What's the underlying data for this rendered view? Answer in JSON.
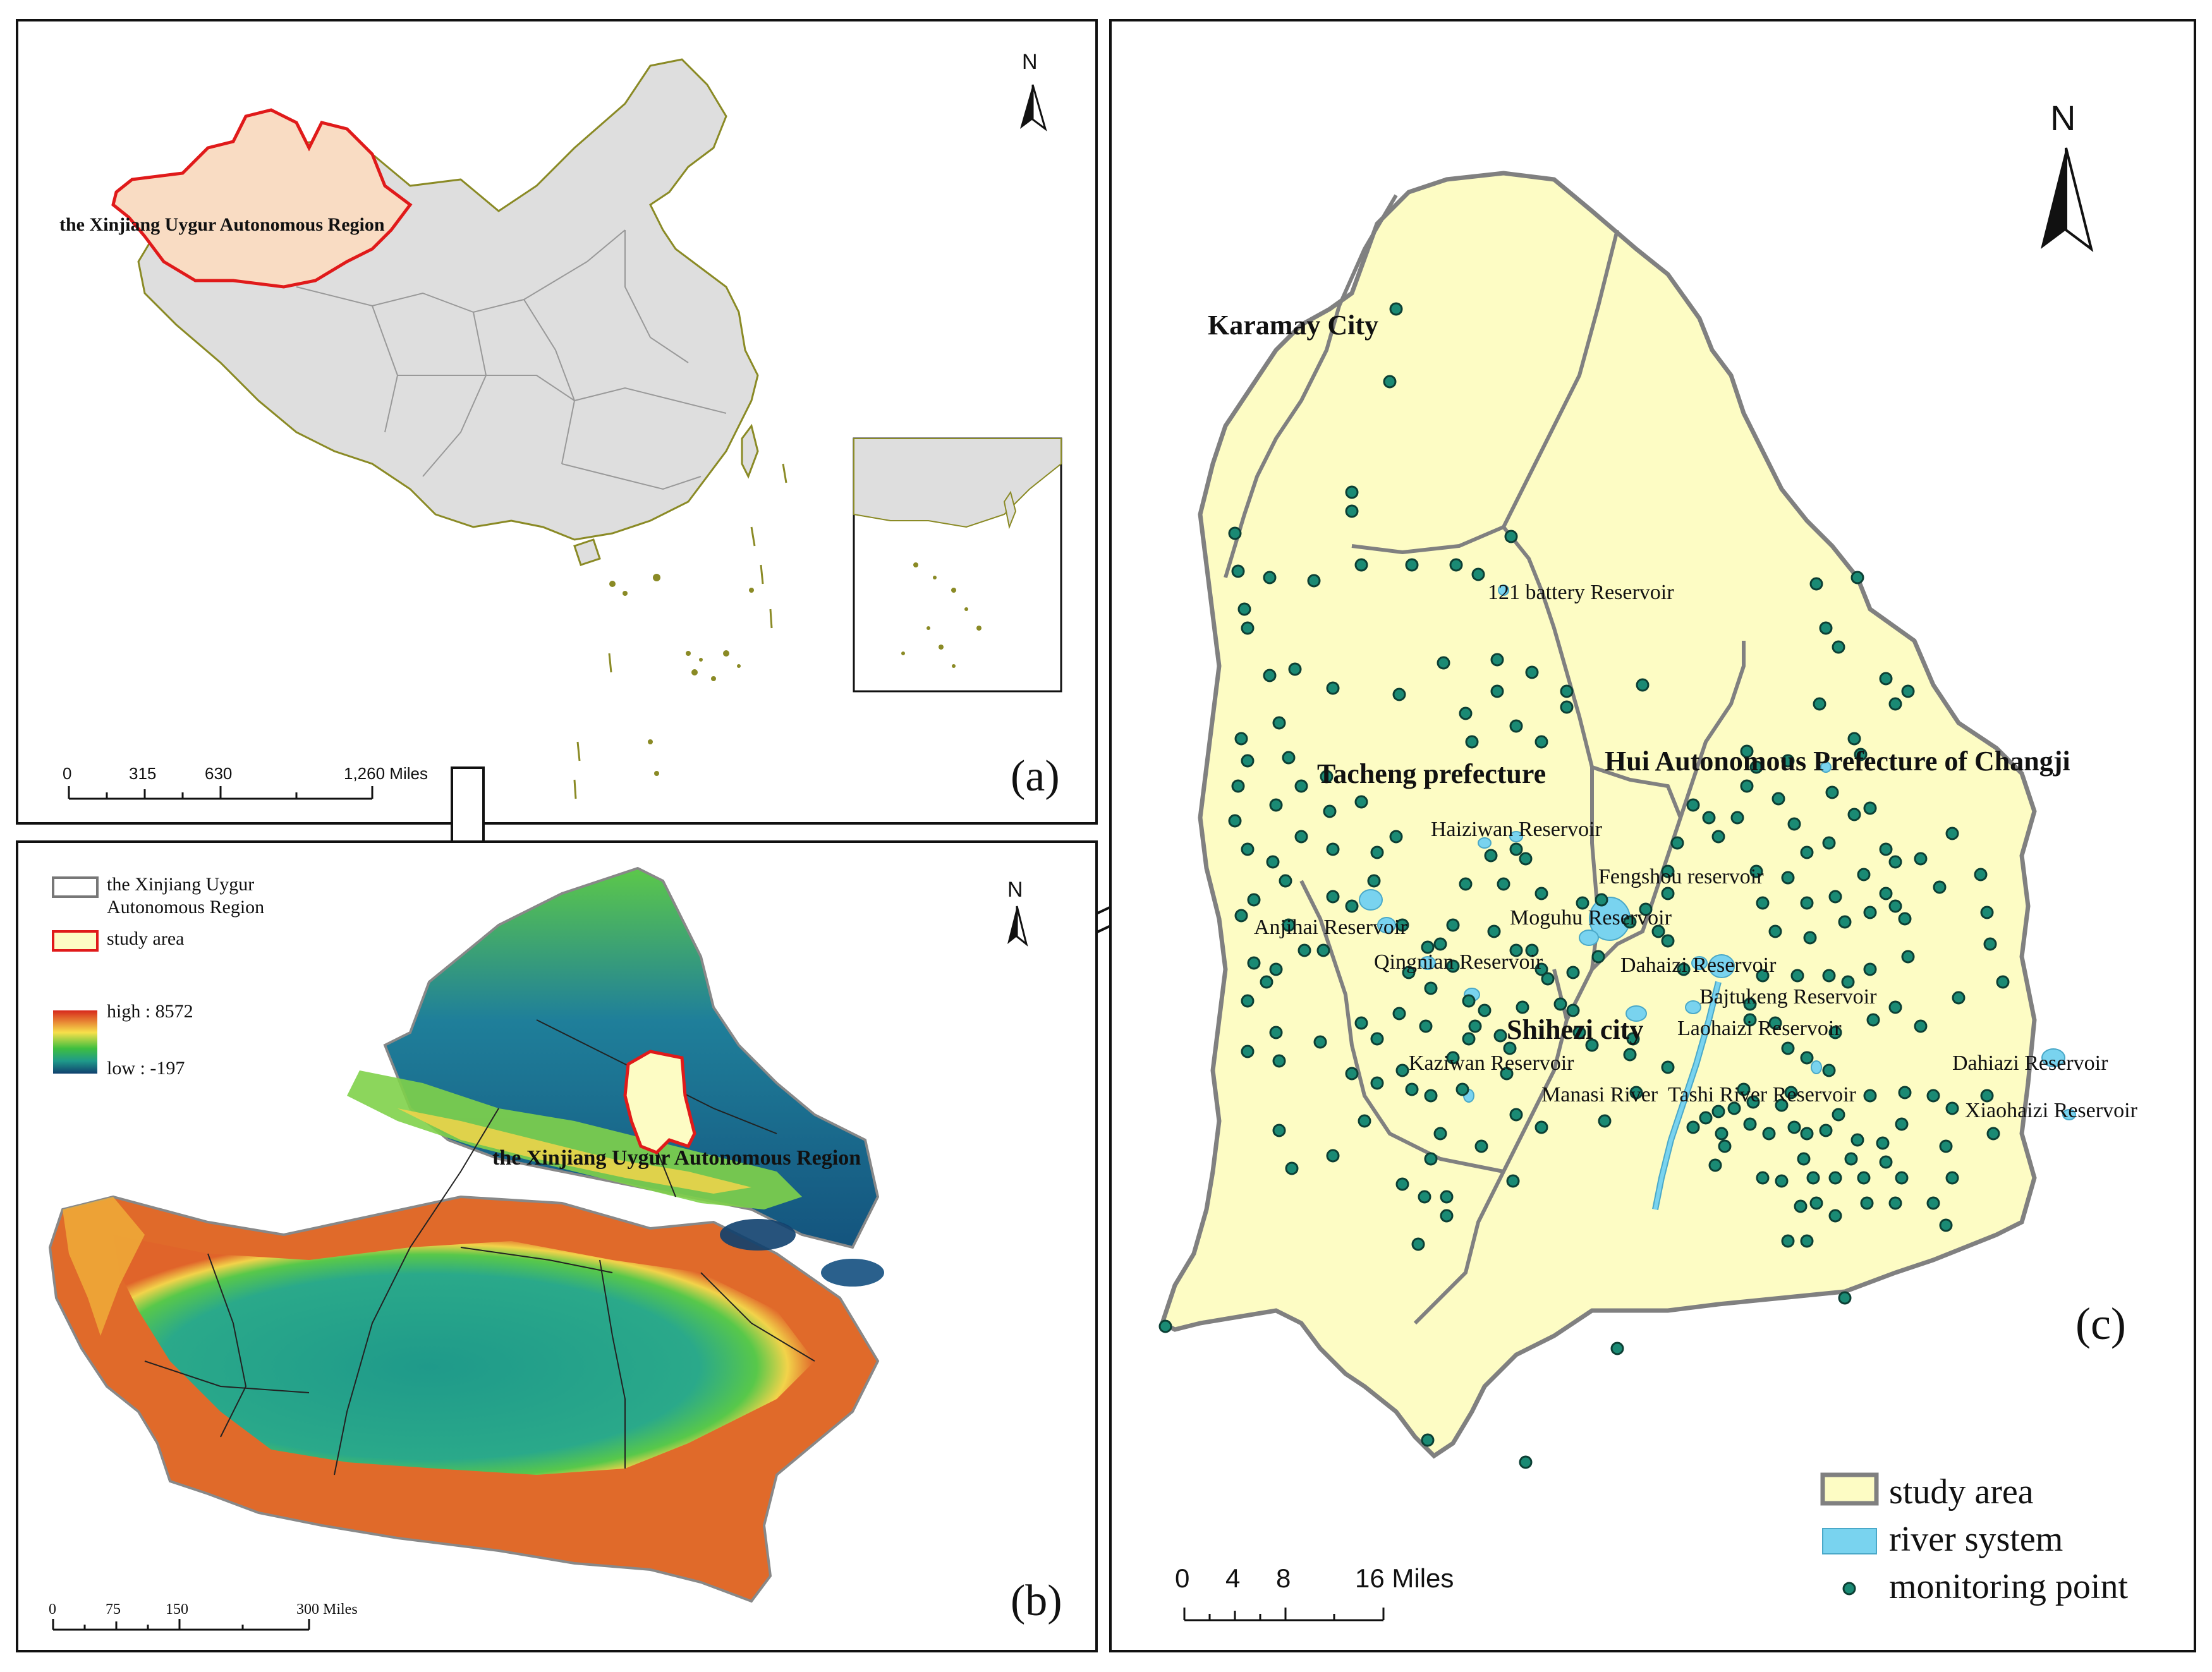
{
  "panel_a": {
    "label": "(a)",
    "region_label": "the Xinjiang Uygur Autonomous Region",
    "north": "N",
    "scale": {
      "ticks": [
        "0",
        "315",
        "630",
        "1,260 Miles"
      ]
    }
  },
  "panel_b": {
    "label": "(b)",
    "region_label": "the Xinjiang Uygur Autonomous Region",
    "north": "N",
    "legend": {
      "boundary": "the Xinjiang Uygur\nAutonomous Region",
      "study_area": "study area",
      "high": "high : 8572",
      "low": "low : -197"
    },
    "scale": {
      "ticks": [
        "0",
        "75",
        "150",
        "300 Miles"
      ]
    },
    "colors": {
      "high": "#d7281c",
      "mid1": "#f7e04b",
      "mid2": "#3fbf3f",
      "mid3": "#1f9a8a",
      "low": "#10406e"
    }
  },
  "panel_c": {
    "label": "(c)",
    "north": "N",
    "regions": {
      "karamay": "Karamay City",
      "tacheng": "Tacheng prefecture",
      "changji": "Hui Autonomous Prefecture of Changji",
      "shihezi": "Shihezi city"
    },
    "reservoirs": [
      "121 battery Reservoir",
      "Haiziwan Reservoir",
      "Fengshou reservoir",
      "Anjihai Reservoir",
      "Moguhu Reservoir",
      "Qingnian Reservoir",
      "Dahaizi Reservoir",
      "Bajtukeng Reservoir",
      "Laohaizi Reservoir",
      "Kaziwan Reservoir",
      "Manasi River",
      "Tashi River Reservoir",
      "Dahiazi Reservoir",
      "Xiaohaizi Reservoir"
    ],
    "legend": {
      "study_area": "study area",
      "river_system": "river system",
      "monitoring_point": "monitoring point"
    },
    "scale": {
      "ticks": [
        "0",
        "4",
        "8",
        "16 Miles"
      ]
    },
    "colors": {
      "study_area": "#fdfcc4",
      "river": "#79d3ef",
      "point": "#1a8a74",
      "boundary": "#808080"
    }
  }
}
